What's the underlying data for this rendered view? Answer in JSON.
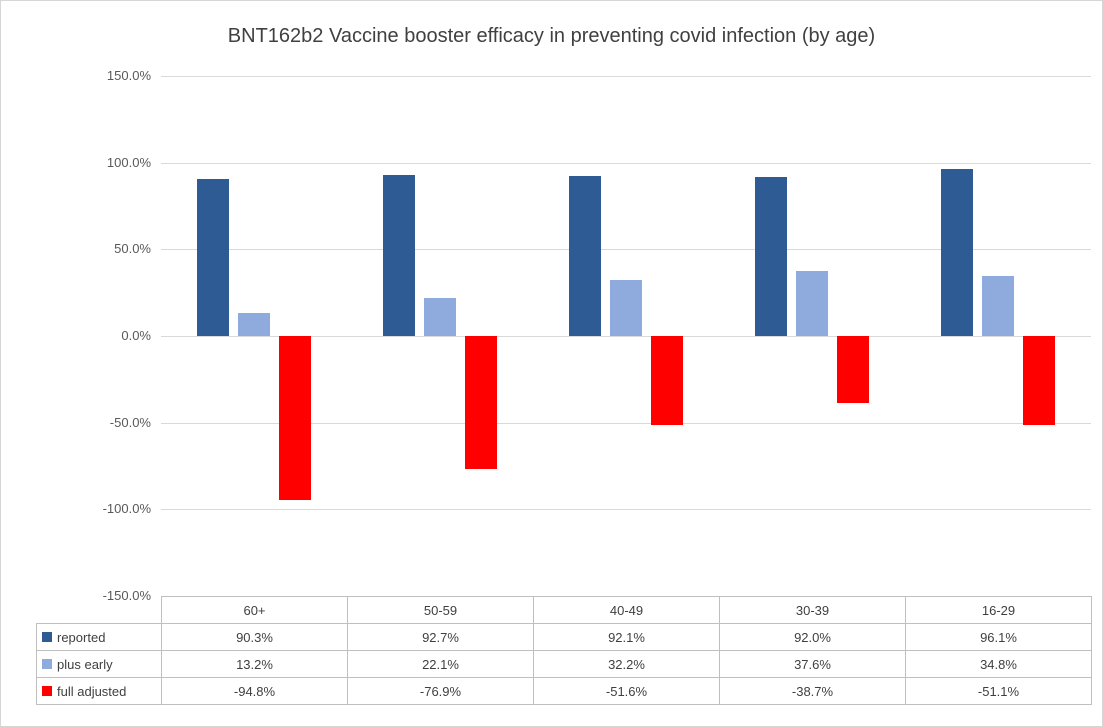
{
  "chart_data": {
    "type": "bar",
    "title": "BNT162b2 Vaccine booster efficacy in preventing covid infection (by age)",
    "categories": [
      "60+",
      "50-59",
      "40-49",
      "30-39",
      "16-29"
    ],
    "series": [
      {
        "name": "reported",
        "color": "#2F5B95",
        "values": [
          90.3,
          92.7,
          92.1,
          92.0,
          96.1
        ],
        "display": [
          "90.3%",
          "92.7%",
          "92.1%",
          "92.0%",
          "96.1%"
        ]
      },
      {
        "name": "plus early",
        "color": "#8FAADC",
        "values": [
          13.2,
          22.1,
          32.2,
          37.6,
          34.8
        ],
        "display": [
          "13.2%",
          "22.1%",
          "32.2%",
          "37.6%",
          "34.8%"
        ]
      },
      {
        "name": "full adjusted",
        "color": "#FF0000",
        "values": [
          -94.8,
          -76.9,
          -51.6,
          -38.7,
          -51.1
        ],
        "display": [
          "-94.8%",
          "-76.9%",
          "-51.6%",
          "-38.7%",
          "-51.1%"
        ]
      }
    ],
    "y_axis": {
      "min": -150,
      "max": 150,
      "tick_step": 50,
      "ticks": [
        150,
        100,
        50,
        0,
        -50,
        -100,
        -150
      ],
      "tick_labels": [
        "150.0%",
        "100.0%",
        "50.0%",
        "0.0%",
        "-50.0%",
        "-100.0%",
        "-150.0%"
      ]
    },
    "grid": true,
    "legend_position": "data-table-left-column"
  }
}
